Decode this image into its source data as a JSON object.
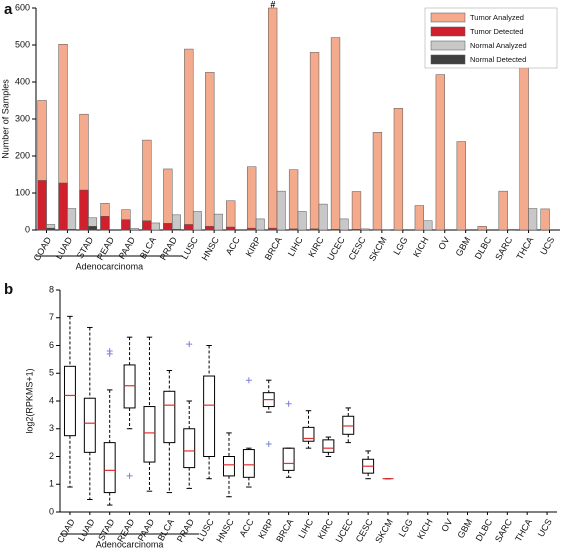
{
  "chart_data": [
    {
      "type": "grouped-overlay-bar",
      "panel_label": "a",
      "y_label": "Number of Samples",
      "categories": [
        "COAD",
        "LUAD",
        "STAD",
        "READ",
        "PAAD",
        "BLCA",
        "PRAD",
        "LUSC",
        "HNSC",
        "ACC",
        "KIRP",
        "BRCA",
        "LIHC",
        "KIRC",
        "UCEC",
        "CESC",
        "SKCM",
        "LGG",
        "KICH",
        "OV",
        "GBM",
        "DLBC",
        "SARC",
        "THCA",
        "UCS"
      ],
      "series": [
        {
          "name": "Tumor Analyzed",
          "color": "#f4aa8c",
          "values": [
            350,
            502,
            313,
            72,
            55,
            243,
            165,
            489,
            426,
            79,
            171,
            600,
            163,
            480,
            520,
            104,
            264,
            329,
            66,
            420,
            239,
            10,
            105,
            493,
            57
          ]
        },
        {
          "name": "Tumor Detected",
          "color": "#d0202e",
          "values": [
            134,
            127,
            108,
            37,
            28,
            25,
            18,
            15,
            10,
            8,
            5,
            5,
            3,
            3,
            2,
            2,
            1,
            0,
            0,
            0,
            0,
            0,
            0,
            0,
            0
          ]
        },
        {
          "name": "Normal Analyzed",
          "color": "#c8c8c8",
          "values": [
            15,
            58,
            33,
            0,
            4,
            19,
            41,
            50,
            43,
            0,
            30,
            105,
            50,
            70,
            30,
            3,
            1,
            0,
            25,
            0,
            0,
            0,
            2,
            58,
            0
          ]
        },
        {
          "name": "Normal Detected",
          "color": "#404040",
          "values": [
            5,
            2,
            10,
            0,
            0,
            0,
            2,
            0,
            0,
            0,
            0,
            0,
            0,
            0,
            0,
            0,
            0,
            0,
            0,
            0,
            0,
            0,
            0,
            0,
            0
          ]
        }
      ],
      "annotation": "#",
      "group_label": "Adenocarcinoma",
      "ylim": [
        0,
        600
      ],
      "yticks": [
        0,
        100,
        200,
        300,
        400,
        500,
        600
      ],
      "legend": "upper right"
    },
    {
      "type": "box",
      "panel_label": "b",
      "y_label": "log2(RPKMS+1)",
      "categories": [
        "COAD",
        "LUAD",
        "STAD",
        "READ",
        "PAAD",
        "BLCA",
        "PRAD",
        "LUSC",
        "HNSC",
        "ACC",
        "KIRP",
        "BRCA",
        "LIHC",
        "KIRC",
        "UCEC",
        "CESC",
        "SKCM",
        "LGG",
        "KICH",
        "OV",
        "GBM",
        "DLBC",
        "SARC",
        "THCA",
        "UCS"
      ],
      "boxes": [
        {
          "low": 0.9,
          "q1": 2.75,
          "median": 4.2,
          "q3": 5.25,
          "high": 7.05,
          "outliers": []
        },
        {
          "low": 0.45,
          "q1": 2.15,
          "median": 3.2,
          "q3": 4.1,
          "high": 6.65,
          "outliers": []
        },
        {
          "low": 0.25,
          "q1": 0.7,
          "median": 1.5,
          "q3": 2.5,
          "high": 4.4,
          "outliers": [
            5.7,
            5.8
          ]
        },
        {
          "low": 3.0,
          "q1": 3.75,
          "median": 4.55,
          "q3": 5.3,
          "high": 6.3,
          "outliers": [
            1.3
          ]
        },
        {
          "low": 0.75,
          "q1": 1.8,
          "median": 2.85,
          "q3": 3.8,
          "high": 6.3,
          "outliers": []
        },
        {
          "low": 0.7,
          "q1": 2.5,
          "median": 3.85,
          "q3": 4.35,
          "high": 5.1,
          "outliers": []
        },
        {
          "low": 0.85,
          "q1": 1.6,
          "median": 2.2,
          "q3": 3.0,
          "high": 4.0,
          "outliers": [
            6.05
          ]
        },
        {
          "low": 1.2,
          "q1": 2.0,
          "median": 3.85,
          "q3": 4.9,
          "high": 6.0,
          "outliers": []
        },
        {
          "low": 0.55,
          "q1": 1.3,
          "median": 1.7,
          "q3": 2.0,
          "high": 2.85,
          "outliers": []
        },
        {
          "low": 0.9,
          "q1": 1.25,
          "median": 1.7,
          "q3": 2.25,
          "high": 2.3,
          "outliers": [
            4.75
          ]
        },
        {
          "low": 3.6,
          "q1": 3.8,
          "median": 4.05,
          "q3": 4.3,
          "high": 4.75,
          "outliers": [
            2.45
          ]
        },
        {
          "low": 1.25,
          "q1": 1.5,
          "median": 1.75,
          "q3": 2.3,
          "high": 2.3,
          "outliers": [
            3.9
          ]
        },
        {
          "low": 2.3,
          "q1": 2.55,
          "median": 2.65,
          "q3": 3.05,
          "high": 3.65,
          "outliers": []
        },
        {
          "low": 2.0,
          "q1": 2.15,
          "median": 2.3,
          "q3": 2.6,
          "high": 2.7,
          "outliers": []
        },
        {
          "low": 2.5,
          "q1": 2.8,
          "median": 3.1,
          "q3": 3.45,
          "high": 3.75,
          "outliers": []
        },
        {
          "low": 1.2,
          "q1": 1.4,
          "median": 1.65,
          "q3": 1.9,
          "high": 2.2,
          "outliers": []
        },
        {
          "low": 1.2,
          "q1": 1.2,
          "median": 1.2,
          "q3": 1.2,
          "high": 1.2,
          "outliers": []
        },
        null,
        null,
        null,
        null,
        null,
        null,
        null,
        null
      ],
      "group_label": "Adenocarcinoma",
      "ylim": [
        0,
        8
      ],
      "yticks": [
        0,
        1,
        2,
        3,
        4,
        5,
        6,
        7,
        8
      ]
    }
  ]
}
